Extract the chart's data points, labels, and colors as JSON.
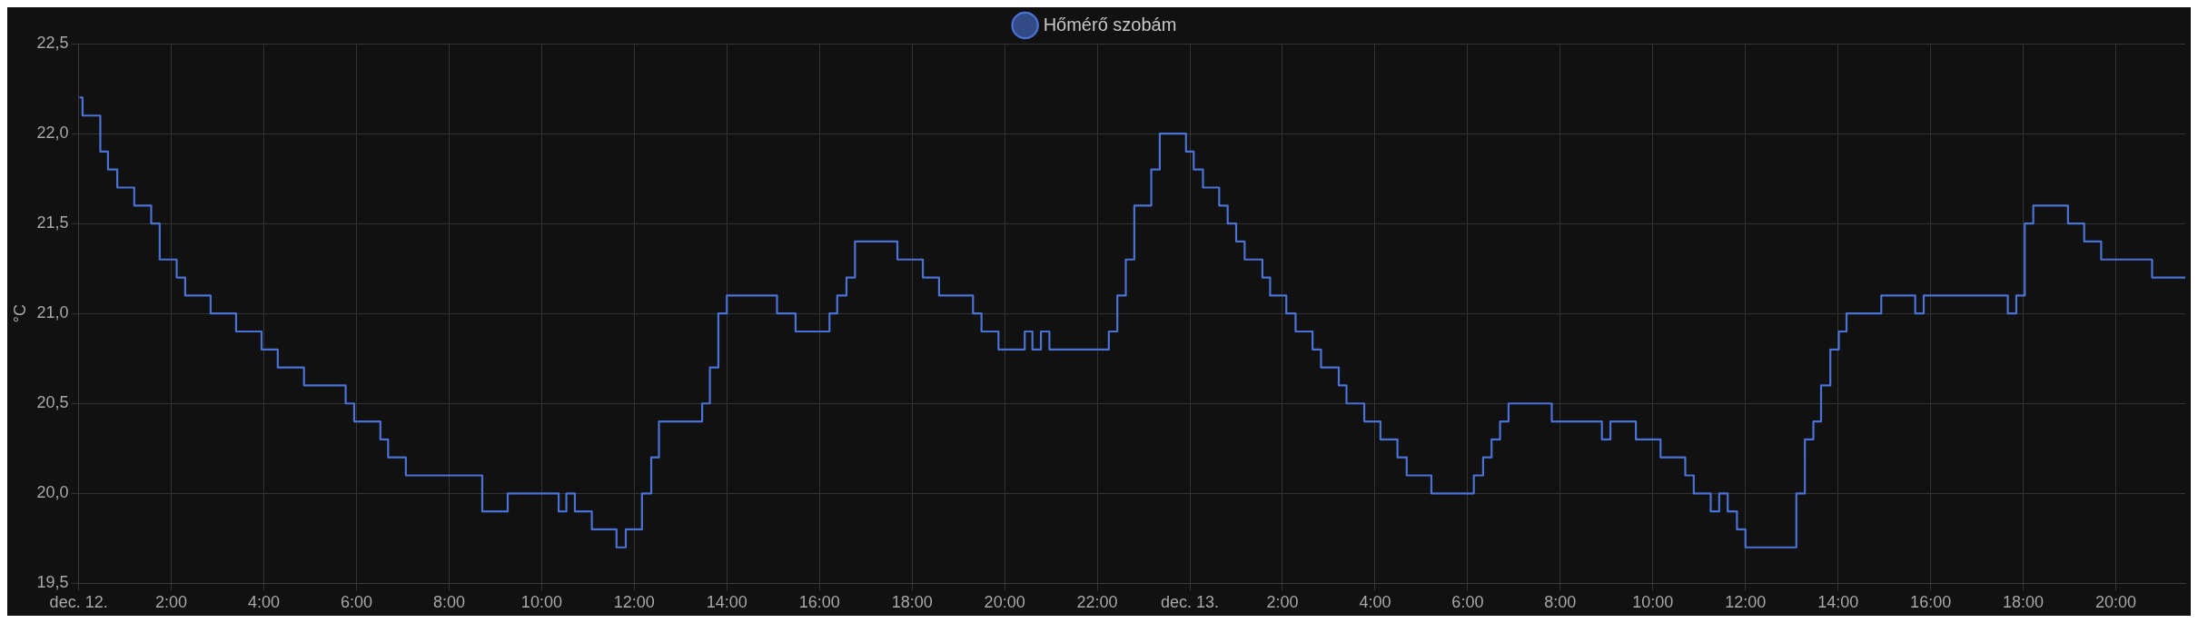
{
  "chart_data": {
    "type": "step",
    "ylabel": "°C",
    "legend": "top",
    "grid": true,
    "marker": "none",
    "line_style": "solid",
    "xlim": [
      "--12-12T00:00",
      "--12-13T21:30"
    ],
    "ylim": [
      19.5,
      22.5
    ],
    "xticks": [
      {
        "value": "--12-12T00:00",
        "label": "dec. 12."
      },
      {
        "value": "--12-12T02:00",
        "label": "2:00"
      },
      {
        "value": "--12-12T04:00",
        "label": "4:00"
      },
      {
        "value": "--12-12T06:00",
        "label": "6:00"
      },
      {
        "value": "--12-12T08:00",
        "label": "8:00"
      },
      {
        "value": "--12-12T10:00",
        "label": "10:00"
      },
      {
        "value": "--12-12T12:00",
        "label": "12:00"
      },
      {
        "value": "--12-12T14:00",
        "label": "14:00"
      },
      {
        "value": "--12-12T16:00",
        "label": "16:00"
      },
      {
        "value": "--12-12T18:00",
        "label": "18:00"
      },
      {
        "value": "--12-12T20:00",
        "label": "20:00"
      },
      {
        "value": "--12-12T22:00",
        "label": "22:00"
      },
      {
        "value": "--12-13T00:00",
        "label": "dec. 13."
      },
      {
        "value": "--12-13T02:00",
        "label": "2:00"
      },
      {
        "value": "--12-13T04:00",
        "label": "4:00"
      },
      {
        "value": "--12-13T06:00",
        "label": "6:00"
      },
      {
        "value": "--12-13T08:00",
        "label": "8:00"
      },
      {
        "value": "--12-13T10:00",
        "label": "10:00"
      },
      {
        "value": "--12-13T12:00",
        "label": "12:00"
      },
      {
        "value": "--12-13T14:00",
        "label": "14:00"
      },
      {
        "value": "--12-13T16:00",
        "label": "16:00"
      },
      {
        "value": "--12-13T18:00",
        "label": "18:00"
      },
      {
        "value": "--12-13T20:00",
        "label": "20:00"
      }
    ],
    "yticks": [
      {
        "value": 19.5,
        "label": "19,5"
      },
      {
        "value": 20,
        "label": "20,0"
      },
      {
        "value": 20.5,
        "label": "20,5"
      },
      {
        "value": 21,
        "label": "21,0"
      },
      {
        "value": 21.5,
        "label": "21,5"
      },
      {
        "value": 22,
        "label": "22,0"
      },
      {
        "value": 22.5,
        "label": "22,5"
      }
    ],
    "series": [
      {
        "name": "Hőmérő szobám",
        "color": "#4a72d4",
        "x": [
          "--12-12T00:01",
          "--12-12T00:05",
          "--12-12T00:28",
          "--12-12T00:38",
          "--12-12T00:50",
          "--12-12T01:12",
          "--12-12T01:34",
          "--12-12T01:45",
          "--12-12T02:07",
          "--12-12T02:18",
          "--12-12T02:51",
          "--12-12T03:24",
          "--12-12T03:57",
          "--12-12T04:18",
          "--12-12T04:52",
          "--12-12T05:46",
          "--12-12T05:57",
          "--12-12T06:31",
          "--12-12T06:41",
          "--12-12T07:04",
          "--12-12T08:43",
          "--12-12T09:16",
          "--12-12T10:22",
          "--12-12T10:32",
          "--12-12T10:43",
          "--12-12T11:05",
          "--12-12T11:37",
          "--12-12T11:49",
          "--12-12T12:10",
          "--12-12T12:22",
          "--12-12T12:32",
          "--12-12T13:28",
          "--12-12T13:38",
          "--12-12T13:49",
          "--12-12T14:00",
          "--12-12T15:05",
          "--12-12T15:29",
          "--12-12T16:13",
          "--12-12T16:23",
          "--12-12T16:35",
          "--12-12T16:46",
          "--12-12T17:41",
          "--12-12T18:14",
          "--12-12T18:35",
          "--12-12T19:19",
          "--12-12T19:30",
          "--12-12T19:52",
          "--12-12T20:26",
          "--12-12T20:36",
          "--12-12T20:47",
          "--12-12T20:58",
          "--12-12T22:15",
          "--12-12T22:26",
          "--12-12T22:37",
          "--12-12T22:48",
          "--12-12T23:10",
          "--12-12T23:21",
          "--12-12T23:55",
          "--12-13T00:05",
          "--12-13T00:17",
          "--12-13T00:38",
          "--12-13T00:49",
          "--12-13T01:00",
          "--12-13T01:11",
          "--12-13T01:34",
          "--12-13T01:44",
          "--12-13T02:05",
          "--12-13T02:17",
          "--12-13T02:39",
          "--12-13T02:50",
          "--12-13T03:13",
          "--12-13T03:23",
          "--12-13T03:46",
          "--12-13T04:07",
          "--12-13T04:29",
          "--12-13T04:41",
          "--12-13T05:13",
          "--12-13T06:08",
          "--12-13T06:20",
          "--12-13T06:31",
          "--12-13T06:42",
          "--12-13T06:53",
          "--12-13T07:49",
          "--12-13T08:54",
          "--12-13T09:05",
          "--12-13T09:38",
          "--12-13T10:10",
          "--12-13T10:42",
          "--12-13T10:53",
          "--12-13T11:15",
          "--12-13T11:26",
          "--12-13T11:37",
          "--12-13T11:49",
          "--12-13T12:00",
          "--12-13T13:06",
          "--12-13T13:17",
          "--12-13T13:28",
          "--12-13T13:38",
          "--12-13T13:50",
          "--12-13T14:01",
          "--12-13T14:11",
          "--12-13T14:56",
          "--12-13T15:40",
          "--12-13T15:51",
          "--12-13T17:40",
          "--12-13T17:51",
          "--12-13T18:02",
          "--12-13T18:13",
          "--12-13T18:58",
          "--12-13T19:19",
          "--12-13T19:41",
          "--12-13T20:47",
          "--12-13T21:30"
        ],
        "values": [
          22.2,
          22.1,
          21.9,
          21.8,
          21.7,
          21.6,
          21.5,
          21.3,
          21.2,
          21.1,
          21.0,
          20.9,
          20.8,
          20.7,
          20.6,
          20.5,
          20.4,
          20.3,
          20.2,
          20.1,
          19.9,
          20.0,
          19.9,
          20.0,
          19.9,
          19.8,
          19.7,
          19.8,
          20.0,
          20.2,
          20.4,
          20.5,
          20.7,
          21.0,
          21.1,
          21.0,
          20.9,
          21.0,
          21.1,
          21.2,
          21.4,
          21.3,
          21.2,
          21.1,
          21.0,
          20.9,
          20.8,
          20.9,
          20.8,
          20.9,
          20.8,
          20.9,
          21.1,
          21.3,
          21.6,
          21.8,
          22.0,
          21.9,
          21.8,
          21.7,
          21.6,
          21.5,
          21.4,
          21.3,
          21.2,
          21.1,
          21.0,
          20.9,
          20.8,
          20.7,
          20.6,
          20.5,
          20.4,
          20.3,
          20.2,
          20.1,
          20.0,
          20.1,
          20.2,
          20.3,
          20.4,
          20.5,
          20.4,
          20.3,
          20.4,
          20.3,
          20.2,
          20.1,
          20.0,
          19.9,
          20.0,
          19.9,
          19.8,
          19.7,
          20.0,
          20.3,
          20.4,
          20.6,
          20.8,
          20.9,
          21.0,
          21.1,
          21.0,
          21.1,
          21.0,
          21.1,
          21.5,
          21.6,
          21.5,
          21.4,
          21.3,
          21.2,
          21.2
        ]
      }
    ]
  }
}
